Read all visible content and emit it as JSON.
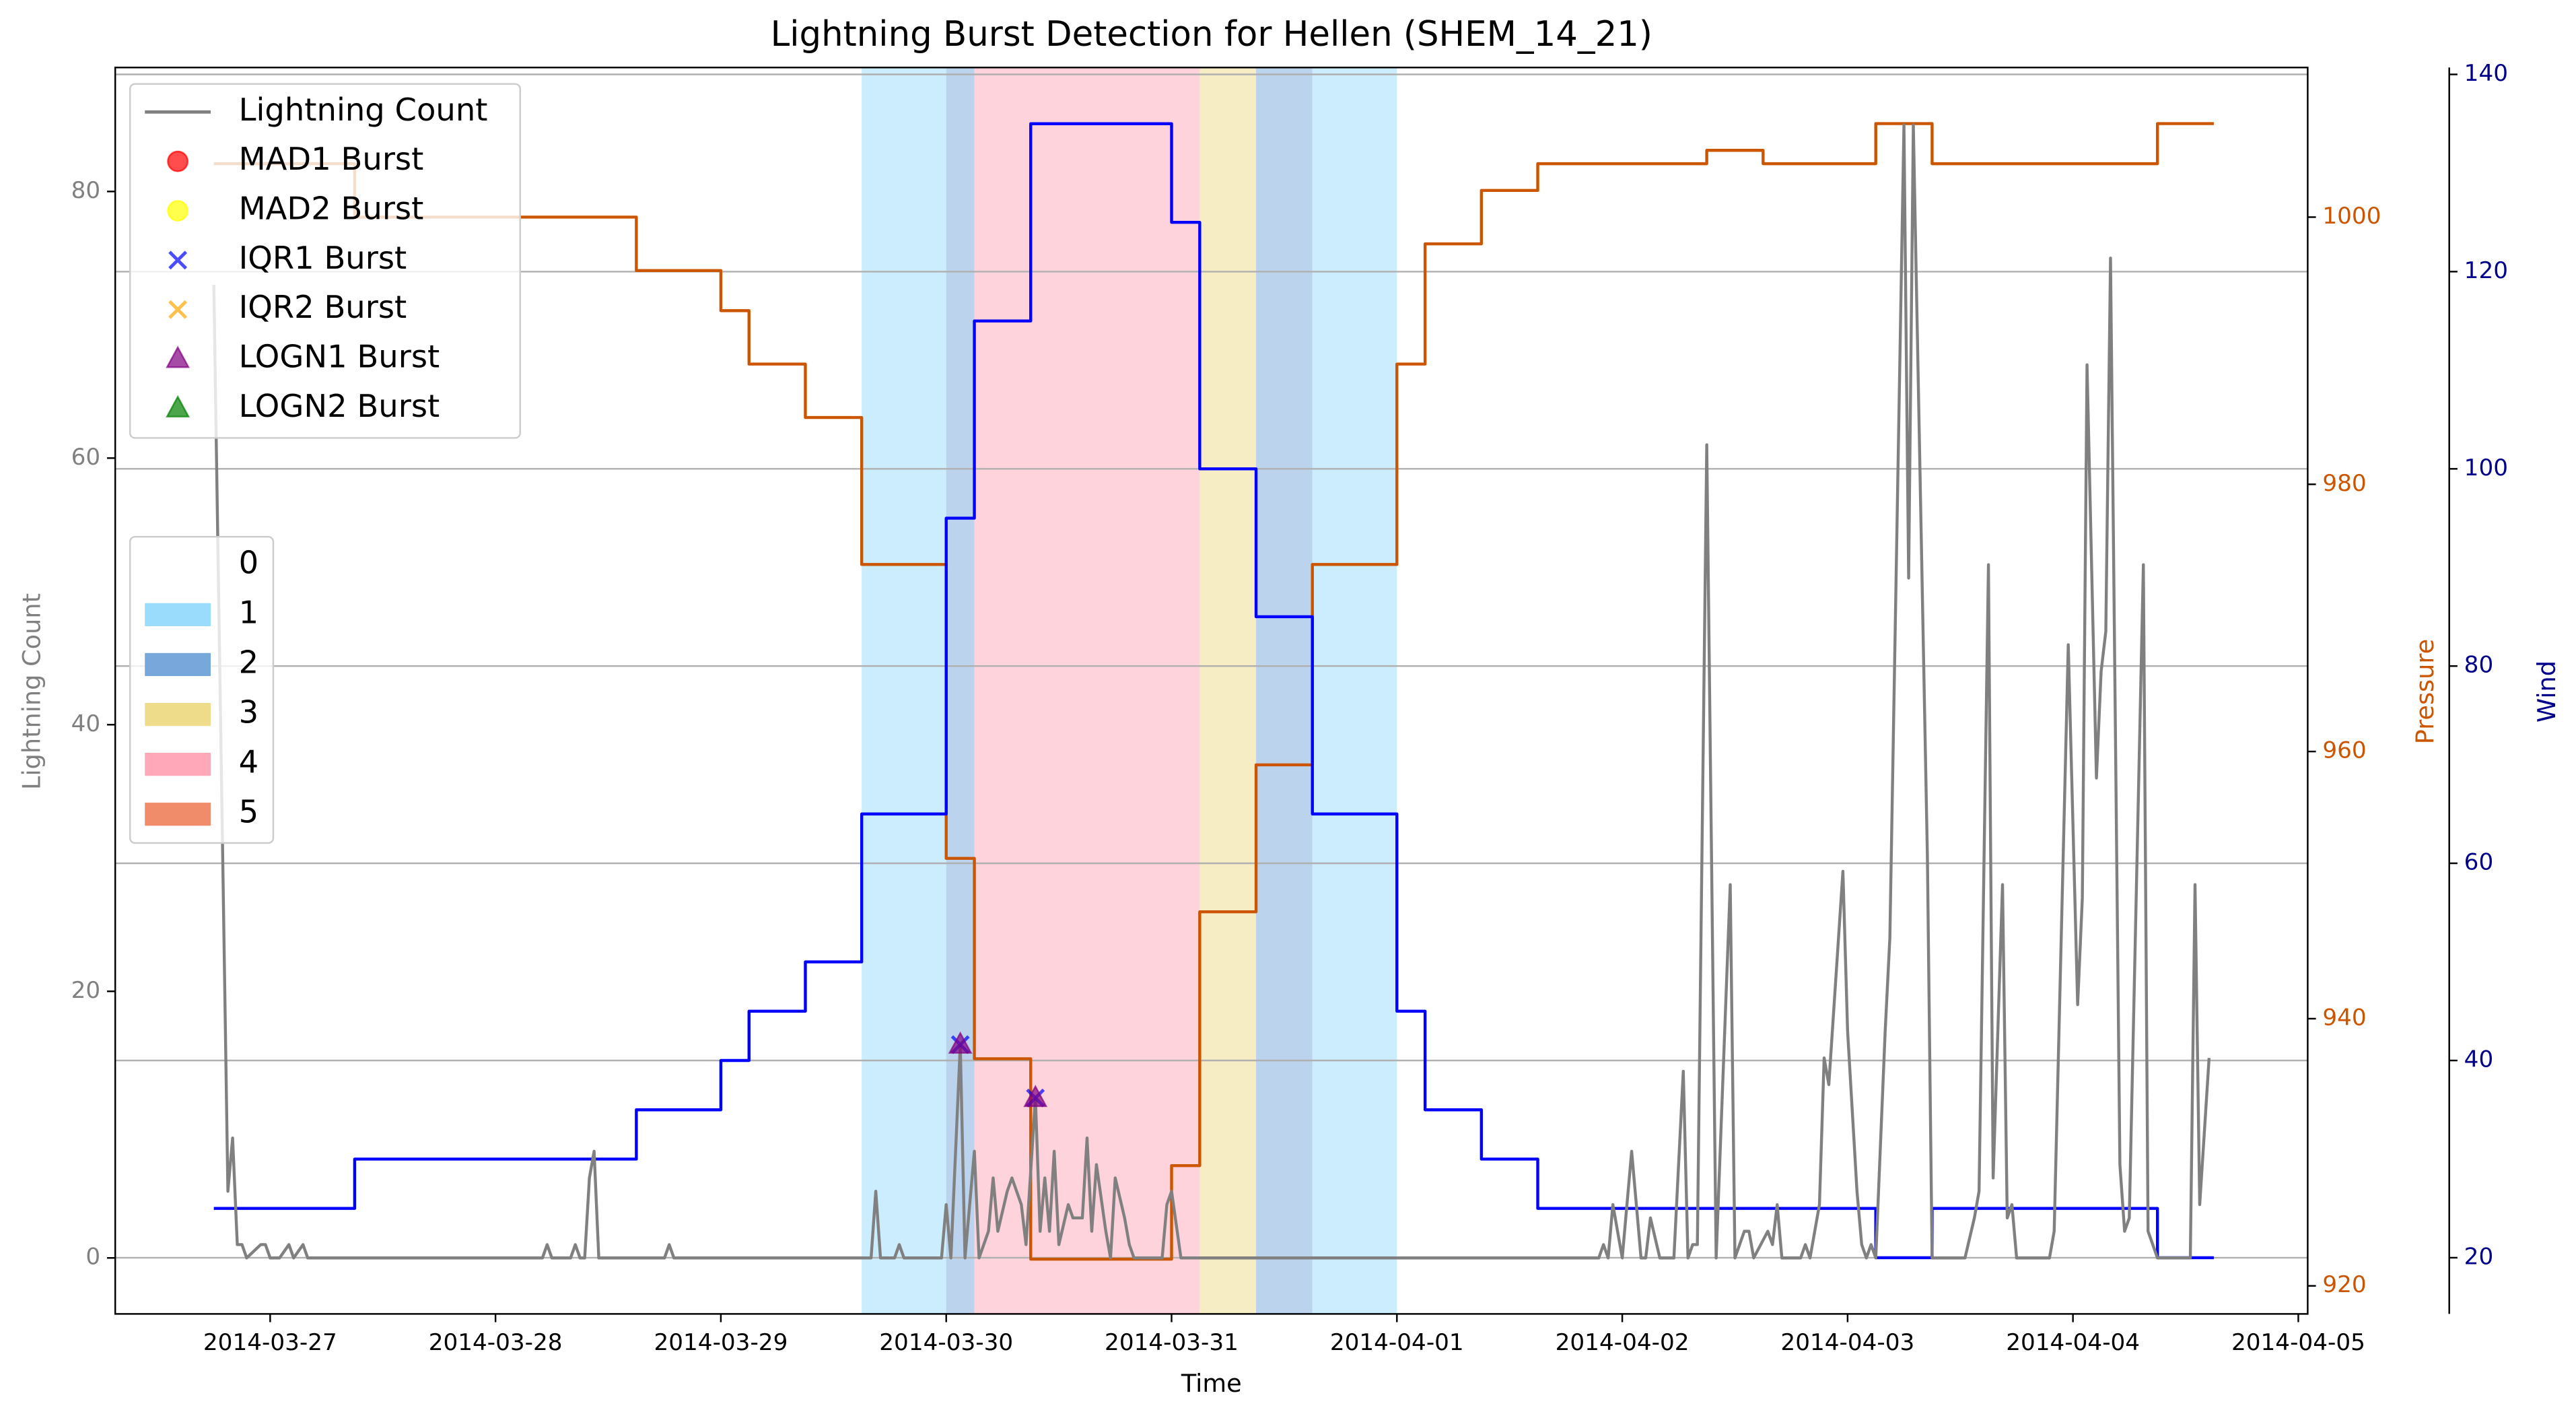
{
  "chart_data": {
    "type": "line",
    "title": "Lightning Burst Detection for Hellen (SHEM_14_21)",
    "xlabel": "Time",
    "ylabel": "Lightning Count",
    "y2label": "Pressure",
    "y3label": "Wind",
    "xlim": [
      "2014-03-26 07:30",
      "2014-04-05 01:00"
    ],
    "xticks": [
      "2014-03-27",
      "2014-03-28",
      "2014-03-29",
      "2014-03-30",
      "2014-03-31",
      "2014-04-01",
      "2014-04-02",
      "2014-04-03",
      "2014-04-04",
      "2014-04-05"
    ],
    "ylim": [
      -4.2,
      89.3
    ],
    "yticks": [
      0,
      20,
      40,
      60,
      80
    ],
    "y2lim": [
      917.9,
      1011.2
    ],
    "y2ticks": [
      920,
      940,
      960,
      980,
      1000
    ],
    "y3lim": [
      14.3,
      140.7
    ],
    "y3ticks": [
      20,
      40,
      60,
      80,
      100,
      120,
      140
    ],
    "ycolor": "#808080",
    "y2color": "#cc5500",
    "y3color": "#00008b",
    "grid": "y3",
    "legend_loc": "upper left",
    "series": [
      {
        "name": "Lightning Count",
        "color": "#808080",
        "x": [
          "2014-03-26 18:00",
          "2014-03-26 19:30",
          "2014-03-26 20:00",
          "2014-03-26 20:30",
          "2014-03-26 21:00",
          "2014-03-26 21:30",
          "2014-03-26 23:00",
          "2014-03-26 23:30",
          "2014-03-27 00:00",
          "2014-03-27 01:00",
          "2014-03-27 02:00",
          "2014-03-27 02:30",
          "2014-03-27 03:30",
          "2014-03-27 04:00",
          "2014-03-28 05:00",
          "2014-03-28 05:30",
          "2014-03-28 06:00",
          "2014-03-28 08:00",
          "2014-03-28 08:30",
          "2014-03-28 09:00",
          "2014-03-28 09:30",
          "2014-03-28 10:00",
          "2014-03-28 10:30",
          "2014-03-28 11:00",
          "2014-03-28 18:00",
          "2014-03-28 18:30",
          "2014-03-28 19:00",
          "2014-03-29 16:00",
          "2014-03-29 16:30",
          "2014-03-29 17:00",
          "2014-03-29 18:30",
          "2014-03-29 19:00",
          "2014-03-29 19:30",
          "2014-03-29 23:30",
          "2014-03-30 00:00",
          "2014-03-30 00:30",
          "2014-03-30 01:30",
          "2014-03-30 02:00",
          "2014-03-30 03:00",
          "2014-03-30 03:30",
          "2014-03-30 04:30",
          "2014-03-30 05:00",
          "2014-03-30 05:30",
          "2014-03-30 06:30",
          "2014-03-30 07:00",
          "2014-03-30 08:00",
          "2014-03-30 08:30",
          "2014-03-30 09:30",
          "2014-03-30 10:00",
          "2014-03-30 10:30",
          "2014-03-30 11:00",
          "2014-03-30 11:30",
          "2014-03-30 12:00",
          "2014-03-30 13:00",
          "2014-03-30 13:30",
          "2014-03-30 14:30",
          "2014-03-30 15:00",
          "2014-03-30 15:30",
          "2014-03-30 16:00",
          "2014-03-30 17:00",
          "2014-03-30 17:30",
          "2014-03-30 18:00",
          "2014-03-30 19:00",
          "2014-03-30 19:30",
          "2014-03-30 20:00",
          "2014-03-30 23:00",
          "2014-03-30 23:30",
          "2014-03-31 00:00",
          "2014-03-31 01:00",
          "2014-04-01 21:30",
          "2014-04-01 22:00",
          "2014-04-01 22:30",
          "2014-04-01 23:00",
          "2014-04-02 00:00",
          "2014-04-02 01:00",
          "2014-04-02 02:00",
          "2014-04-02 02:30",
          "2014-04-02 03:00",
          "2014-04-02 04:00",
          "2014-04-02 05:30",
          "2014-04-02 06:30",
          "2014-04-02 07:00",
          "2014-04-02 07:30",
          "2014-04-02 08:00",
          "2014-04-02 09:00",
          "2014-04-02 10:00",
          "2014-04-02 11:30",
          "2014-04-02 12:00",
          "2014-04-02 13:00",
          "2014-04-02 13:30",
          "2014-04-02 14:00",
          "2014-04-02 15:30",
          "2014-04-02 16:00",
          "2014-04-02 16:30",
          "2014-04-02 17:00",
          "2014-04-02 19:00",
          "2014-04-02 19:30",
          "2014-04-02 20:00",
          "2014-04-02 21:00",
          "2014-04-02 21:30",
          "2014-04-02 22:00",
          "2014-04-02 23:30",
          "2014-04-03 00:00",
          "2014-04-03 01:00",
          "2014-04-03 01:30",
          "2014-04-03 02:00",
          "2014-04-03 02:30",
          "2014-04-03 03:00",
          "2014-04-03 04:00",
          "2014-04-03 04:30",
          "2014-04-03 06:00",
          "2014-04-03 06:30",
          "2014-04-03 07:00",
          "2014-04-03 08:30",
          "2014-04-03 09:00",
          "2014-04-03 12:30",
          "2014-04-03 13:30",
          "2014-04-03 14:00",
          "2014-04-03 15:00",
          "2014-04-03 15:30",
          "2014-04-03 16:30",
          "2014-04-03 17:00",
          "2014-04-03 17:30",
          "2014-04-03 18:00",
          "2014-04-03 21:30",
          "2014-04-03 22:00",
          "2014-04-03 23:30",
          "2014-04-04 00:30",
          "2014-04-04 01:00",
          "2014-04-04 01:30",
          "2014-04-04 02:30",
          "2014-04-04 03:00",
          "2014-04-04 03:30",
          "2014-04-04 04:00",
          "2014-04-04 05:00",
          "2014-04-04 05:30",
          "2014-04-04 06:00",
          "2014-04-04 07:30",
          "2014-04-04 08:00",
          "2014-04-04 09:00",
          "2014-04-04 12:30",
          "2014-04-04 13:00",
          "2014-04-04 13:30",
          "2014-04-04 14:30"
        ],
        "values": [
          73,
          5,
          9,
          1,
          1,
          0,
          1,
          1,
          0,
          0,
          1,
          0,
          1,
          0,
          0,
          1,
          0,
          0,
          1,
          0,
          0,
          6,
          8,
          0,
          0,
          1,
          0,
          0,
          5,
          0,
          0,
          1,
          0,
          0,
          4,
          0,
          16,
          0,
          8,
          0,
          2,
          6,
          2,
          5,
          6,
          4,
          1,
          12,
          2,
          6,
          2,
          8,
          1,
          4,
          3,
          3,
          9,
          2,
          7,
          2,
          0,
          6,
          3,
          1,
          0,
          0,
          4,
          5,
          0,
          0,
          1,
          0,
          4,
          0,
          8,
          0,
          0,
          3,
          0,
          0,
          14,
          0,
          1,
          1,
          61,
          0,
          28,
          0,
          2,
          2,
          0,
          2,
          1,
          4,
          0,
          0,
          1,
          0,
          4,
          15,
          13,
          29,
          17,
          5,
          1,
          0,
          1,
          0,
          17,
          24,
          85,
          51,
          85,
          30,
          0,
          0,
          3,
          5,
          52,
          6,
          28,
          3,
          4,
          0,
          0,
          2,
          46,
          19,
          27,
          67,
          36,
          44,
          47,
          75,
          7,
          2,
          3,
          52,
          2,
          0,
          0,
          28,
          4,
          15
        ]
      },
      {
        "color": "#cc5500",
        "axis": "y2",
        "x": [
          "2014-03-26 18:00",
          "2014-03-27 09:00",
          "2014-03-27 09:00",
          "2014-03-28 15:00",
          "2014-03-28 15:00",
          "2014-03-29 00:00",
          "2014-03-29 00:00",
          "2014-03-29 03:00",
          "2014-03-29 03:00",
          "2014-03-29 09:00",
          "2014-03-29 09:00",
          "2014-03-29 15:00",
          "2014-03-29 15:00",
          "2014-03-30 00:00",
          "2014-03-30 00:00",
          "2014-03-30 03:00",
          "2014-03-30 03:00",
          "2014-03-30 09:00",
          "2014-03-30 09:00",
          "2014-03-31 00:00",
          "2014-03-31 00:00",
          "2014-03-31 03:00",
          "2014-03-31 03:00",
          "2014-03-31 09:00",
          "2014-03-31 09:00",
          "2014-03-31 15:00",
          "2014-03-31 15:00",
          "2014-04-01 00:00",
          "2014-04-01 00:00",
          "2014-04-01 03:00",
          "2014-04-01 03:00",
          "2014-04-01 09:00",
          "2014-04-01 09:00",
          "2014-04-01 15:00",
          "2014-04-01 15:00",
          "2014-04-02 09:00",
          "2014-04-02 09:00",
          "2014-04-02 15:00",
          "2014-04-02 15:00",
          "2014-04-03 03:00",
          "2014-04-03 03:00",
          "2014-04-03 09:00",
          "2014-04-03 09:00",
          "2014-04-04 09:00",
          "2014-04-04 09:00",
          "2014-04-04 15:00"
        ],
        "values": [
          1004,
          1004,
          1000,
          1000,
          996,
          996,
          993,
          993,
          989,
          989,
          985,
          985,
          974,
          974,
          952,
          952,
          937,
          937,
          922,
          922,
          929,
          929,
          948,
          948,
          959,
          959,
          974,
          974,
          989,
          989,
          998,
          998,
          1002,
          1002,
          1004,
          1004,
          1005,
          1005,
          1004,
          1004,
          1007,
          1007,
          1004,
          1004,
          1007,
          1007
        ]
      },
      {
        "color": "#0000ff",
        "axis": "y3",
        "x": [
          "2014-03-26 18:00",
          "2014-03-27 09:00",
          "2014-03-27 09:00",
          "2014-03-28 15:00",
          "2014-03-28 15:00",
          "2014-03-29 00:00",
          "2014-03-29 00:00",
          "2014-03-29 03:00",
          "2014-03-29 03:00",
          "2014-03-29 09:00",
          "2014-03-29 09:00",
          "2014-03-29 15:00",
          "2014-03-29 15:00",
          "2014-03-30 00:00",
          "2014-03-30 00:00",
          "2014-03-30 03:00",
          "2014-03-30 03:00",
          "2014-03-30 09:00",
          "2014-03-30 09:00",
          "2014-03-31 00:00",
          "2014-03-31 00:00",
          "2014-03-31 03:00",
          "2014-03-31 03:00",
          "2014-03-31 09:00",
          "2014-03-31 09:00",
          "2014-03-31 15:00",
          "2014-03-31 15:00",
          "2014-04-01 00:00",
          "2014-04-01 00:00",
          "2014-04-01 03:00",
          "2014-04-01 03:00",
          "2014-04-01 09:00",
          "2014-04-01 09:00",
          "2014-04-01 15:00",
          "2014-04-01 15:00",
          "2014-04-03 03:00",
          "2014-04-03 03:00",
          "2014-04-03 09:00",
          "2014-04-03 09:00",
          "2014-04-04 09:00",
          "2014-04-04 09:00",
          "2014-04-04 15:00"
        ],
        "values": [
          25,
          25,
          30,
          30,
          35,
          35,
          40,
          40,
          45,
          45,
          50,
          50,
          65,
          65,
          95,
          95,
          115,
          115,
          135,
          135,
          125,
          125,
          100,
          100,
          85,
          85,
          65,
          65,
          45,
          45,
          35,
          35,
          30,
          30,
          25,
          25,
          20,
          20,
          25,
          25,
          20,
          20
        ]
      }
    ],
    "markers": [
      {
        "name": "MAD1 Burst",
        "color": "#ff0000",
        "marker": "o",
        "x": [],
        "values": []
      },
      {
        "name": "MAD2 Burst",
        "color": "#ffff00",
        "marker": "o",
        "x": [],
        "values": []
      },
      {
        "name": "IQR1 Burst",
        "color": "#0000ff",
        "marker": "x",
        "x": [
          "2014-03-30 01:30",
          "2014-03-30 09:30"
        ],
        "values": [
          16,
          12
        ]
      },
      {
        "name": "IQR2 Burst",
        "color": "#ffa500",
        "marker": "x",
        "x": [],
        "values": []
      },
      {
        "name": "LOGN1 Burst",
        "color": "#800080",
        "marker": "^",
        "x": [
          "2014-03-30 01:30",
          "2014-03-30 09:30"
        ],
        "values": [
          16,
          12
        ]
      },
      {
        "name": "LOGN2 Burst",
        "color": "#008000",
        "marker": "^",
        "x": [],
        "values": []
      }
    ],
    "bands": [
      {
        "start": "2014-03-29 15:00",
        "end": "2014-03-30 00:00",
        "category": 1
      },
      {
        "start": "2014-03-30 00:00",
        "end": "2014-03-30 03:00",
        "category": 2
      },
      {
        "start": "2014-03-30 03:00",
        "end": "2014-03-31 03:00",
        "category": 4
      },
      {
        "start": "2014-03-31 03:00",
        "end": "2014-03-31 09:00",
        "category": 3
      },
      {
        "start": "2014-03-31 09:00",
        "end": "2014-03-31 15:00",
        "category": 2
      },
      {
        "start": "2014-03-31 15:00",
        "end": "2014-04-01 00:00",
        "category": 1
      }
    ],
    "band_legend": {
      "labels": [
        0,
        1,
        2,
        3,
        4,
        5
      ],
      "colors": [
        null,
        "#99dcfb",
        "#78a8db",
        "#eedc8a",
        "#ffa8ba",
        "#f08c6a"
      ]
    }
  }
}
